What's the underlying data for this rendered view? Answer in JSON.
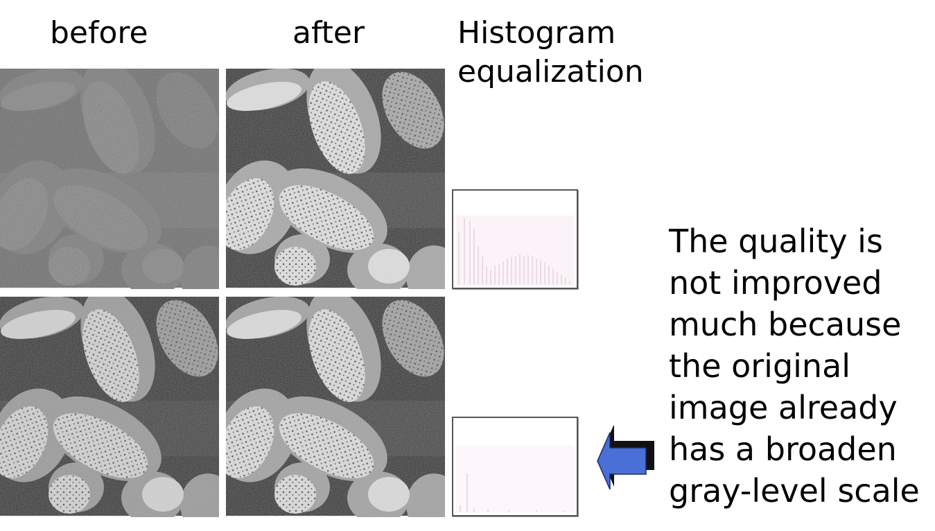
{
  "slide": {
    "label_before": "before",
    "label_after": "after",
    "label_histogram_line1": "Histogram",
    "label_histogram_line2": "equalization",
    "note_lines": [
      "The quality is",
      "not improved",
      "much because",
      "the original",
      "image already",
      "has a broaden",
      "gray-level scale"
    ]
  },
  "images": {
    "top_before": "low-contrast pollen image",
    "top_after": "equalized pollen image",
    "bottom_before": "high-contrast pollen image",
    "bottom_after": "equalized pollen image"
  },
  "colors": {
    "arrow_fill": "#4a6fd6",
    "arrow_shadow": "#111111"
  },
  "icons": {
    "pointer": "left-arrow-icon"
  }
}
